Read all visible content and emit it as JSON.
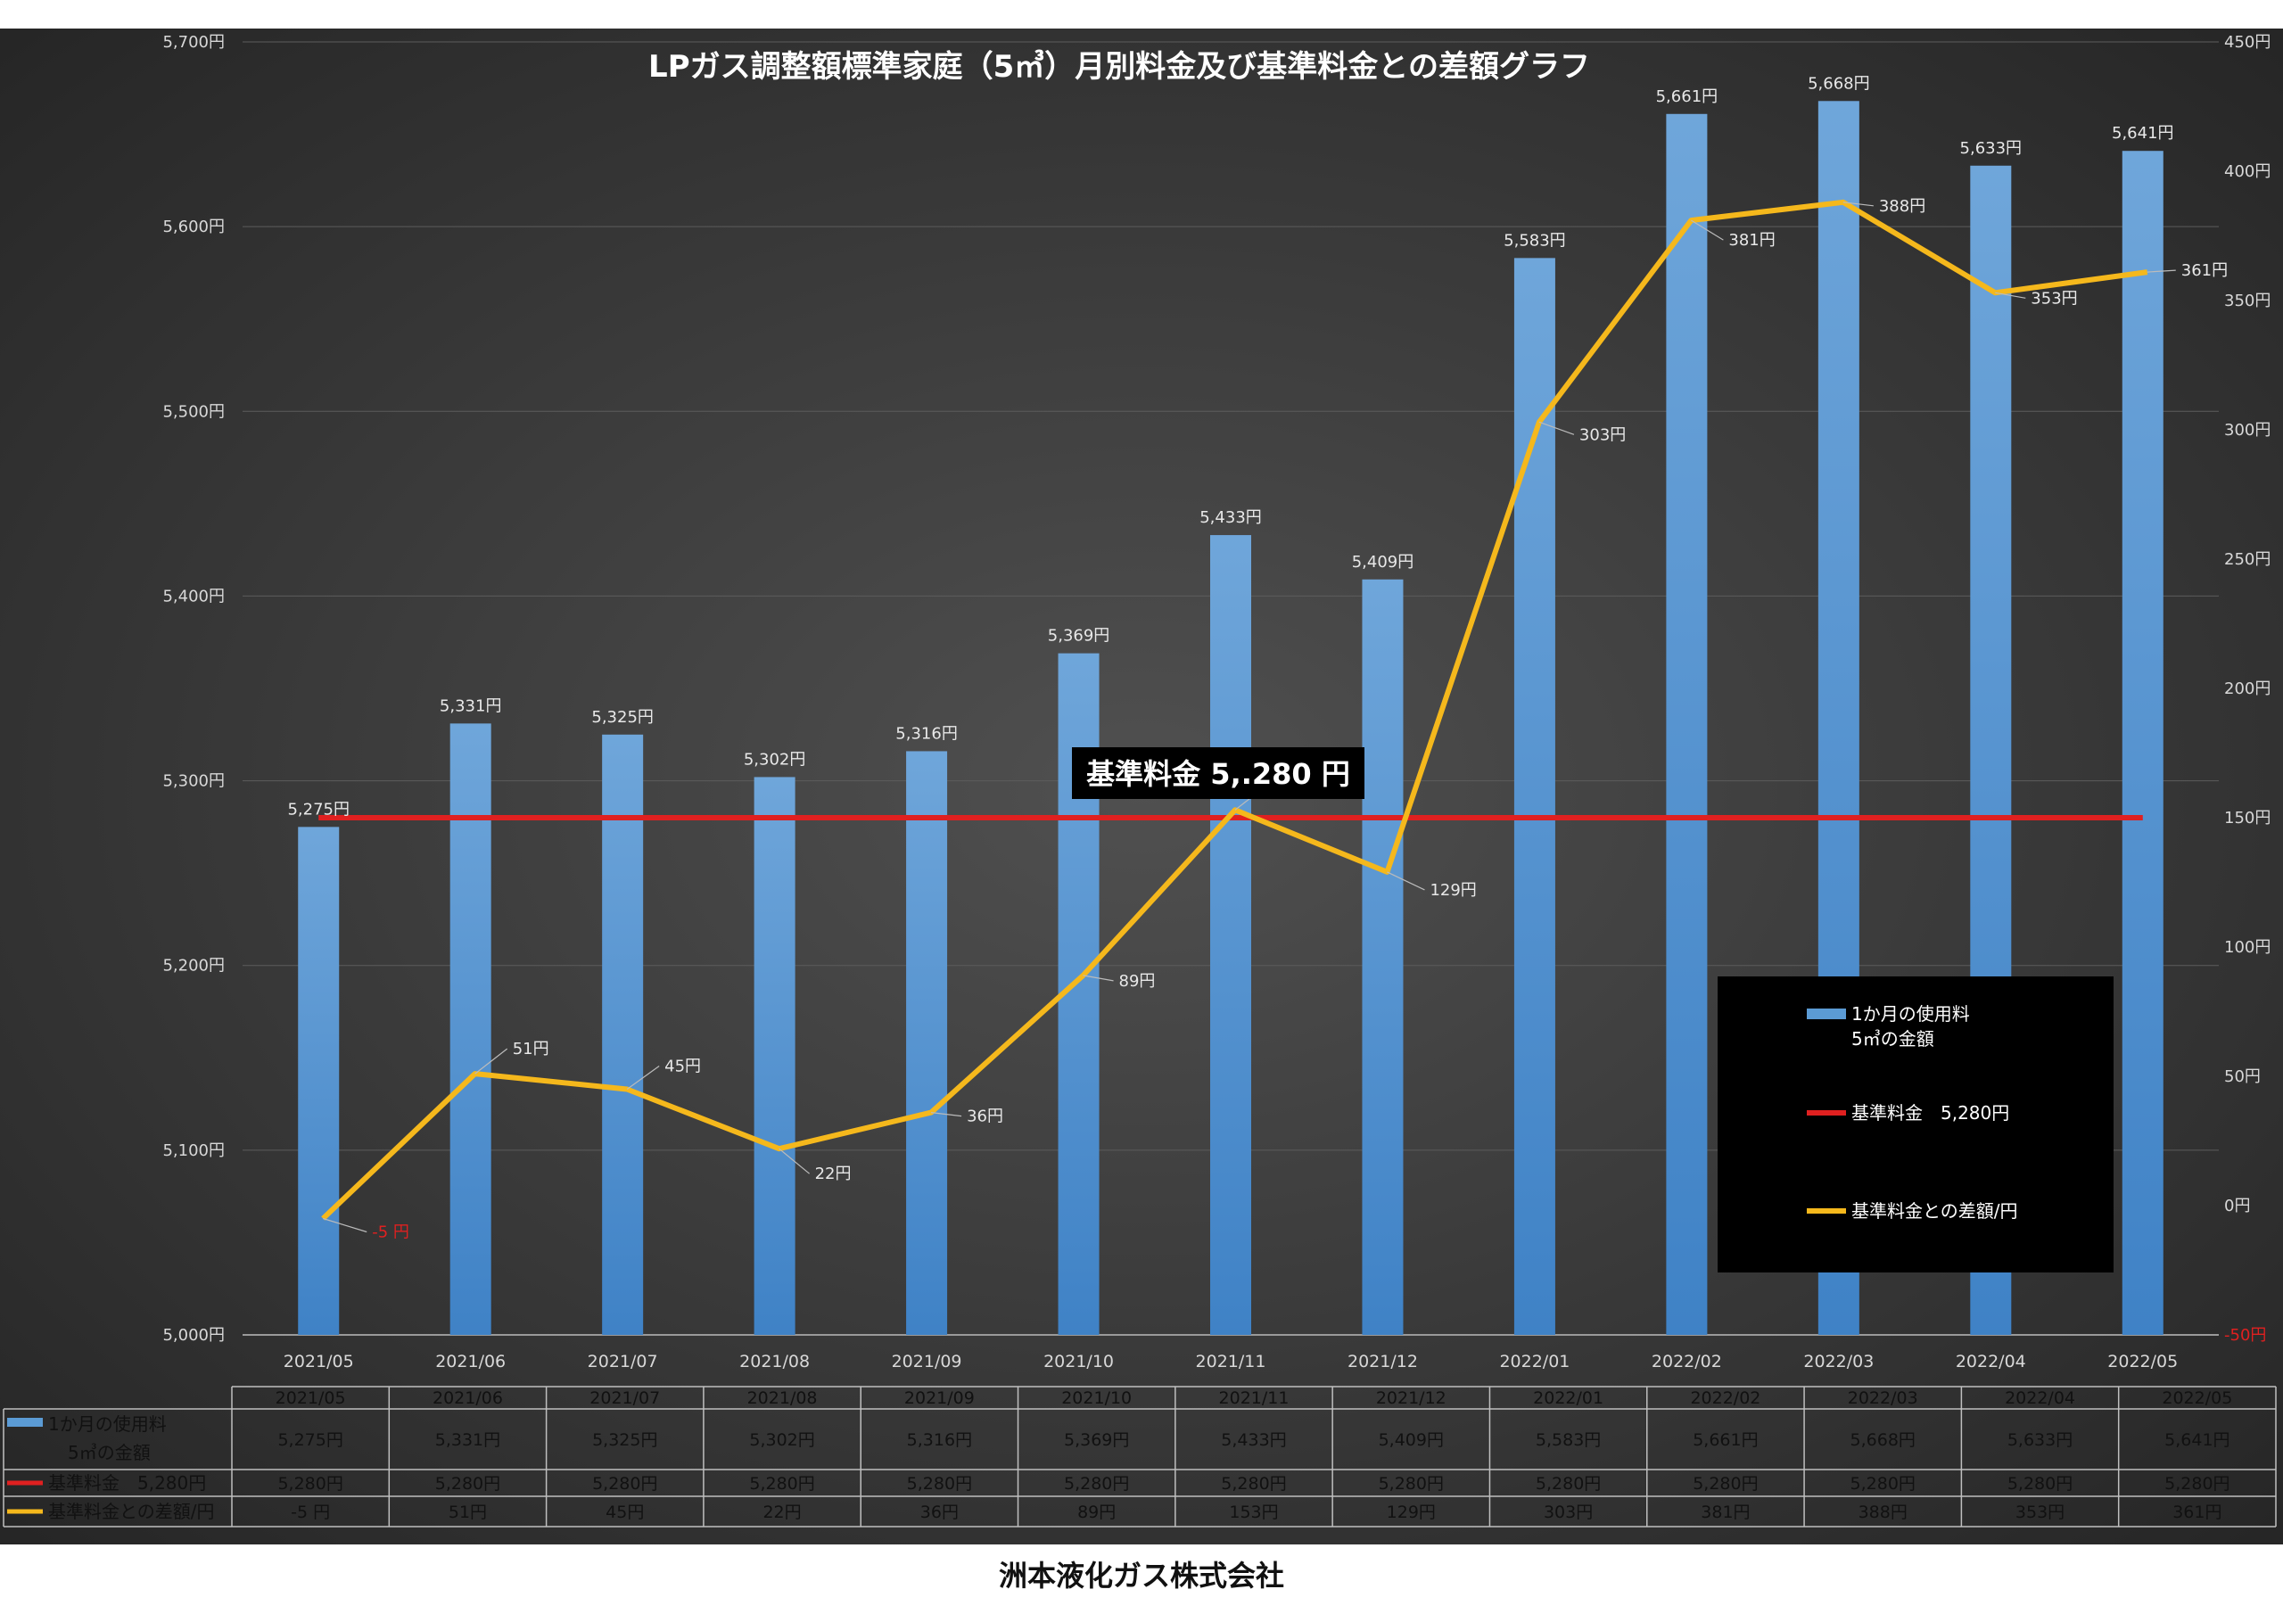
{
  "chart_data": {
    "type": "bar",
    "title": "LPガス調整額標準家庭（5㎥）月別料金及び基準料金との差額グラフ",
    "categories": [
      "2021/05",
      "2021/06",
      "2021/07",
      "2021/08",
      "2021/09",
      "2021/10",
      "2021/11",
      "2021/12",
      "2022/01",
      "2022/02",
      "2022/03",
      "2022/04",
      "2022/05"
    ],
    "left_axis": {
      "min": 5000,
      "max": 5700,
      "step": 100,
      "ticks": [
        "5,000円",
        "5,100円",
        "5,200円",
        "5,300円",
        "5,400円",
        "5,500円",
        "5,600円",
        "5,700円"
      ]
    },
    "right_axis": {
      "min": -50,
      "max": 450,
      "step": 50,
      "ticks": [
        "-50円",
        "0円",
        "50円",
        "100円",
        "150円",
        "200円",
        "250円",
        "300円",
        "350円",
        "400円",
        "450円"
      ]
    },
    "series": [
      {
        "name": "1か月の使用料\n5㎥の金額",
        "type": "bar",
        "axis": "left",
        "color": "#5b9bd5",
        "values": [
          5275,
          5331,
          5325,
          5302,
          5316,
          5369,
          5433,
          5409,
          5583,
          5661,
          5668,
          5633,
          5641
        ],
        "labels": [
          "5,275円",
          "5,331円",
          "5,325円",
          "5,302円",
          "5,316円",
          "5,369円",
          "5,433円",
          "5,409円",
          "5,583円",
          "5,661円",
          "5,668円",
          "5,633円",
          "5,641円"
        ]
      },
      {
        "name": "基準料金　5,280円",
        "type": "line",
        "axis": "left",
        "color": "#e02020",
        "values": [
          5280,
          5280,
          5280,
          5280,
          5280,
          5280,
          5280,
          5280,
          5280,
          5280,
          5280,
          5280,
          5280
        ],
        "labels": [
          "5,280円",
          "5,280円",
          "5,280円",
          "5,280円",
          "5,280円",
          "5,280円",
          "5,280円",
          "5,280円",
          "5,280円",
          "5,280円",
          "5,280円",
          "5,280円",
          "5,280円"
        ]
      },
      {
        "name": "基準料金との差額/円",
        "type": "line",
        "axis": "right",
        "color": "#f5b81c",
        "values": [
          -5,
          51,
          45,
          22,
          36,
          89,
          153,
          129,
          303,
          381,
          388,
          353,
          361
        ],
        "labels": [
          "-5 円",
          "51円",
          "45円",
          "22円",
          "36円",
          "89円",
          "153円",
          "129円",
          "303円",
          "381円",
          "388円",
          "353円",
          "361円"
        ]
      }
    ],
    "annotation": "基準料金  5,.280  円",
    "legend": {
      "placement": "bottom-right"
    },
    "grid": true
  },
  "company": "洲本液化ガス株式会社"
}
